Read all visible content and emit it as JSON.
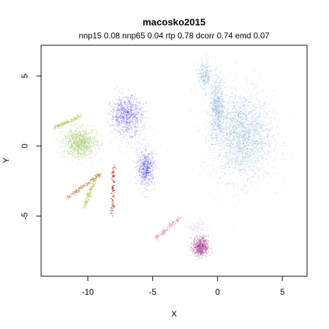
{
  "chart_data": {
    "type": "scatter",
    "title": "macosko2015",
    "subtitle": "nnp15 0.08 nnp65 0.04 rtp 0.78 dcorr 0.74 emd 0.07",
    "xlabel": "X",
    "ylabel": "Y",
    "xlim": [
      -13.6,
      6.9
    ],
    "ylim": [
      -9.3,
      7.2
    ],
    "xticks": [
      -10,
      -5,
      0,
      5
    ],
    "yticks": [
      -5,
      0,
      5
    ],
    "grid": false,
    "legend": "none",
    "series": [
      {
        "color": "#5b8ec4",
        "opacity": 0.18,
        "points": 3400,
        "clusters": [
          {
            "shape": "blob",
            "cx": 1.9,
            "cy": 0.7,
            "sx": 2.1,
            "sy": 2.9,
            "w": 0.7
          },
          {
            "shape": "blob",
            "cx": 0.0,
            "cy": 2.7,
            "sx": 0.55,
            "sy": 2.0,
            "w": 0.22
          },
          {
            "shape": "blob",
            "cx": -1.0,
            "cy": 5.0,
            "sx": 0.5,
            "sy": 1.0,
            "w": 0.08
          }
        ]
      },
      {
        "color": "#3a2ed6",
        "opacity": 0.22,
        "points": 1300,
        "clusters": [
          {
            "shape": "blob",
            "cx": -7.0,
            "cy": 2.2,
            "sx": 1.1,
            "sy": 1.2,
            "w": 0.6
          },
          {
            "shape": "blob",
            "cx": -5.5,
            "cy": -1.6,
            "sx": 0.6,
            "sy": 1.1,
            "w": 0.4
          }
        ]
      },
      {
        "color": "#9cc25c",
        "opacity": 0.28,
        "points": 1000,
        "clusters": [
          {
            "shape": "blob",
            "cx": -10.6,
            "cy": 0.2,
            "sx": 1.2,
            "sy": 0.95,
            "w": 1.0
          }
        ]
      },
      {
        "color": "#b5c857",
        "opacity": 0.6,
        "points": 220,
        "clusters": [
          {
            "shape": "line",
            "x1": -9.4,
            "y1": -2.3,
            "x2": -10.3,
            "y2": -4.4,
            "w": 0.5
          },
          {
            "shape": "line",
            "x1": -10.6,
            "y1": 2.1,
            "x2": -12.6,
            "y2": 1.3,
            "w": 0.5
          }
        ]
      },
      {
        "color": "#c8864a",
        "opacity": 0.6,
        "points": 140,
        "clusters": [
          {
            "shape": "line",
            "x1": -9.0,
            "y1": -2.0,
            "x2": -11.6,
            "y2": -3.7,
            "w": 1.0
          }
        ]
      },
      {
        "color": "#b03a2e",
        "opacity": 0.6,
        "points": 100,
        "clusters": [
          {
            "shape": "line",
            "x1": -8.0,
            "y1": -1.4,
            "x2": -8.1,
            "y2": -4.9,
            "w": 1.0
          }
        ]
      },
      {
        "color": "#9e2a86",
        "opacity": 0.25,
        "points": 700,
        "clusters": [
          {
            "shape": "blob",
            "cx": -1.3,
            "cy": -7.2,
            "sx": 0.55,
            "sy": 0.65,
            "w": 0.85
          },
          {
            "shape": "line",
            "x1": -4.8,
            "y1": -6.6,
            "x2": -2.8,
            "y2": -5.1,
            "w": 0.15
          }
        ]
      },
      {
        "color": "#b8c0d8",
        "opacity": 0.25,
        "points": 250,
        "clusters": [
          {
            "shape": "blob",
            "cx": -6.2,
            "cy": 0.4,
            "sx": 1.6,
            "sy": 1.3,
            "w": 0.6
          },
          {
            "shape": "blob",
            "cx": -1.6,
            "cy": -5.8,
            "sx": 0.6,
            "sy": 0.5,
            "w": 0.4
          }
        ]
      }
    ]
  }
}
